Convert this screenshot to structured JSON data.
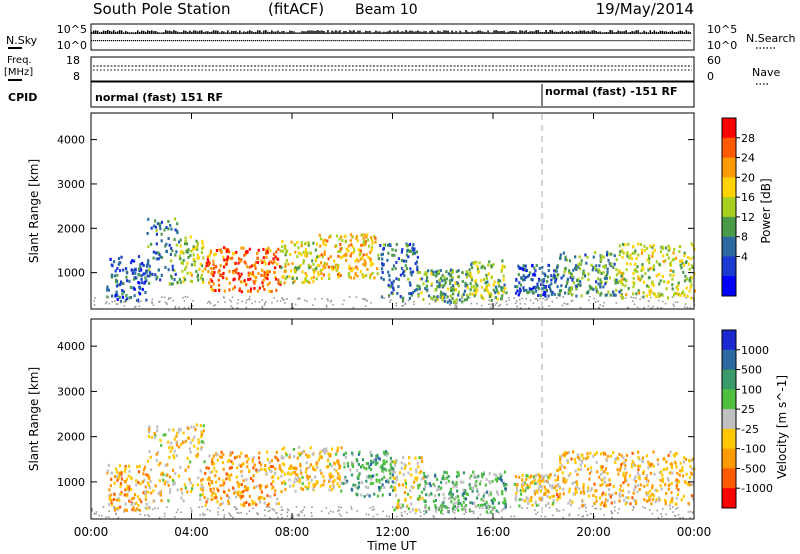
{
  "header": {
    "station": "South Pole Station",
    "mode": "(fitACF)",
    "beam": "Beam 10",
    "date": "19/May/2014"
  },
  "top_panels": {
    "nsky_label": "N.Sky",
    "nsearch_label": "N.Search",
    "nsky_ticks": [
      "10^5",
      "10^0"
    ],
    "nsky_right_ticks": [
      "10^5",
      "10^0"
    ],
    "freq_label_1": "Freq.",
    "freq_label_2": "[MHz]",
    "freq_ticks": [
      "18",
      "8"
    ],
    "nave_label": "Nave",
    "nave_ticks": [
      "60",
      "0"
    ],
    "cpid_label": "CPID",
    "cpid_1": "normal (fast) 151 RF",
    "cpid_2": "normal (fast) -151 RF",
    "cpid_change_time": "18:00"
  },
  "colors": {
    "axis": "#000000",
    "dashed_marker": "#aaaaaa",
    "ground_scatter": "#9a9a9a"
  },
  "chart_data": [
    {
      "type": "heatmap",
      "title": "Power",
      "xlabel": "",
      "ylabel": "Slant Range [km]",
      "x_ticks": [
        "00:00",
        "04:00",
        "08:00",
        "12:00",
        "16:00",
        "20:00",
        "00:00"
      ],
      "xlim_hours": [
        0,
        24
      ],
      "y_ticks": [
        1000,
        2000,
        3000,
        4000
      ],
      "ylim": [
        180,
        4600
      ],
      "colorbar_label": "Power [dB]",
      "colorbar_ticks": [
        "28",
        "24",
        "20",
        "16",
        "12",
        "8",
        "4"
      ],
      "colorbar_colors": [
        "#ff0000",
        "#ff5a00",
        "#ff9a00",
        "#ffd200",
        "#a8d020",
        "#4a9a4a",
        "#2a6aa0",
        "#1a3ad0",
        "#0000ff"
      ],
      "grid": false,
      "scale_range": [
        0,
        32
      ],
      "scatter_blocks": [
        {
          "t0": 0.6,
          "t1": 2.2,
          "r0": 380,
          "r1": 1400,
          "v": 7
        },
        {
          "t0": 2.2,
          "t1": 3.4,
          "r0": 750,
          "r1": 2300,
          "v": 10
        },
        {
          "t0": 3.4,
          "t1": 4.5,
          "r0": 800,
          "r1": 1850,
          "v": 16
        },
        {
          "t0": 4.5,
          "t1": 7.5,
          "r0": 600,
          "r1": 1600,
          "v": 26
        },
        {
          "t0": 7.5,
          "t1": 9.0,
          "r0": 800,
          "r1": 1750,
          "v": 18
        },
        {
          "t0": 9.0,
          "t1": 11.4,
          "r0": 900,
          "r1": 1900,
          "v": 21
        },
        {
          "t0": 11.4,
          "t1": 13.0,
          "r0": 400,
          "r1": 1700,
          "v": 9
        },
        {
          "t0": 13.0,
          "t1": 15.0,
          "r0": 350,
          "r1": 1100,
          "v": 13
        },
        {
          "t0": 15.0,
          "t1": 16.5,
          "r0": 400,
          "r1": 1300,
          "v": 15
        },
        {
          "t0": 16.8,
          "t1": 18.5,
          "r0": 500,
          "r1": 1200,
          "v": 7
        },
        {
          "t0": 18.5,
          "t1": 21.0,
          "r0": 500,
          "r1": 1500,
          "v": 12
        },
        {
          "t0": 21.0,
          "t1": 24.0,
          "r0": 450,
          "r1": 1700,
          "v": 17
        }
      ]
    },
    {
      "type": "heatmap",
      "title": "Velocity",
      "xlabel": "Time UT",
      "ylabel": "Slant Range [km]",
      "x_ticks": [
        "00:00",
        "04:00",
        "08:00",
        "12:00",
        "16:00",
        "20:00",
        "00:00"
      ],
      "xlim_hours": [
        0,
        24
      ],
      "y_ticks": [
        1000,
        2000,
        3000,
        4000
      ],
      "ylim": [
        180,
        4600
      ],
      "colorbar_label": "Velocity [m s^-1]",
      "colorbar_ticks": [
        "1000",
        "500",
        "100",
        "25",
        "-25",
        "-100",
        "-500",
        "-1000"
      ],
      "colorbar_colors": [
        "#1a2ad0",
        "#2a6aa0",
        "#3a9a6a",
        "#50c040",
        "#c0c0c0",
        "#ffc800",
        "#ff9a00",
        "#ff5a00",
        "#ff0000"
      ],
      "grid": false,
      "scale_range": [
        -1000,
        1000
      ],
      "scatter_blocks": [
        {
          "t0": 0.6,
          "t1": 2.2,
          "r0": 400,
          "r1": 1400,
          "v": -300
        },
        {
          "t0": 2.2,
          "t1": 4.5,
          "r0": 600,
          "r1": 2300,
          "v": -180
        },
        {
          "t0": 4.5,
          "t1": 7.5,
          "r0": 500,
          "r1": 1700,
          "v": -350
        },
        {
          "t0": 7.5,
          "t1": 10.0,
          "r0": 800,
          "r1": 1800,
          "v": -200
        },
        {
          "t0": 10.0,
          "t1": 12.0,
          "r0": 700,
          "r1": 1700,
          "v": 300
        },
        {
          "t0": 12.0,
          "t1": 13.2,
          "r0": 400,
          "r1": 1600,
          "v": -120
        },
        {
          "t0": 13.2,
          "t1": 16.5,
          "r0": 350,
          "r1": 1250,
          "v": 250
        },
        {
          "t0": 16.8,
          "t1": 18.5,
          "r0": 500,
          "r1": 1200,
          "v": -150
        },
        {
          "t0": 18.5,
          "t1": 24.0,
          "r0": 500,
          "r1": 1700,
          "v": -250
        }
      ]
    }
  ]
}
